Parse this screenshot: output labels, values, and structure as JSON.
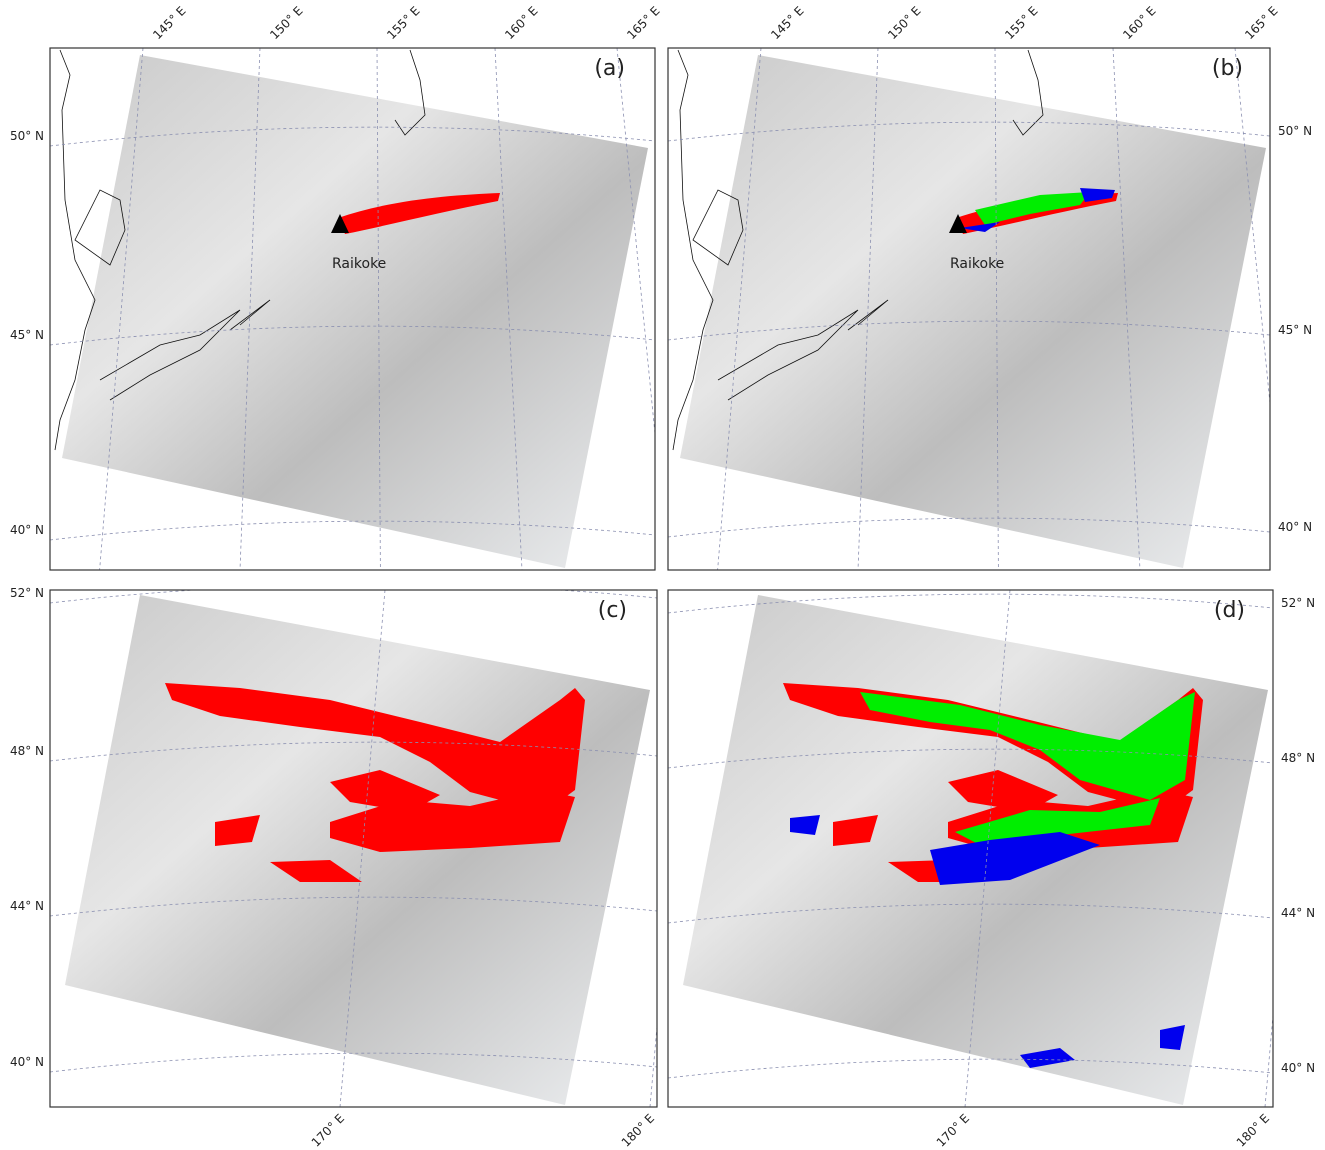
{
  "panels": [
    {
      "label": "(a)",
      "lon_labels": [
        "145° E",
        "150° E",
        "155° E",
        "160° E",
        "165° E"
      ],
      "lat_labels": [
        "50° N",
        "45° N",
        "40° N"
      ],
      "annotation": "Raikoke"
    },
    {
      "label": "(b)",
      "lon_labels": [
        "145° E",
        "150° E",
        "155° E",
        "160° E",
        "165° E"
      ],
      "lat_labels": [
        "50° N",
        "45° N",
        "40° N"
      ],
      "annotation": "Raikoke"
    },
    {
      "label": "(c)",
      "lon_labels": [
        "170° E",
        "180° E"
      ],
      "lat_labels": [
        "52° N",
        "48° N",
        "44° N",
        "40° N"
      ]
    },
    {
      "label": "(d)",
      "lon_labels": [
        "170° E",
        "180° E"
      ],
      "lat_labels": [
        "52° N",
        "48° N",
        "44° N",
        "40° N"
      ]
    }
  ]
}
